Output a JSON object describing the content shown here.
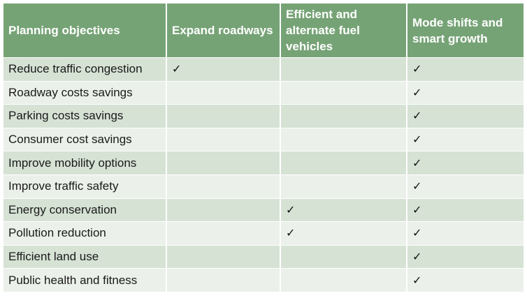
{
  "headers": [
    "Planning objectives",
    "Expand roadways",
    "Efficient and alternate fuel vehicles",
    "Mode shifts and smart growth"
  ],
  "check_symbol": "✓",
  "rows": [
    {
      "objective": "Reduce traffic congestion",
      "checks": [
        true,
        false,
        true
      ]
    },
    {
      "objective": "Roadway costs savings",
      "checks": [
        false,
        false,
        true
      ]
    },
    {
      "objective": "Parking costs savings",
      "checks": [
        false,
        false,
        true
      ]
    },
    {
      "objective": "Consumer cost savings",
      "checks": [
        false,
        false,
        true
      ]
    },
    {
      "objective": "Improve mobility options",
      "checks": [
        false,
        false,
        true
      ]
    },
    {
      "objective": "Improve traffic safety",
      "checks": [
        false,
        false,
        true
      ]
    },
    {
      "objective": "Energy conservation",
      "checks": [
        false,
        true,
        true
      ]
    },
    {
      "objective": "Pollution reduction",
      "checks": [
        false,
        true,
        true
      ]
    },
    {
      "objective": "Efficient land use",
      "checks": [
        false,
        false,
        true
      ]
    },
    {
      "objective": "Public health and fitness",
      "checks": [
        false,
        false,
        true
      ]
    }
  ],
  "colors": {
    "header_bg": "#76a376",
    "row_dark": "#d5e2d4",
    "row_light": "#ebf0ea"
  }
}
